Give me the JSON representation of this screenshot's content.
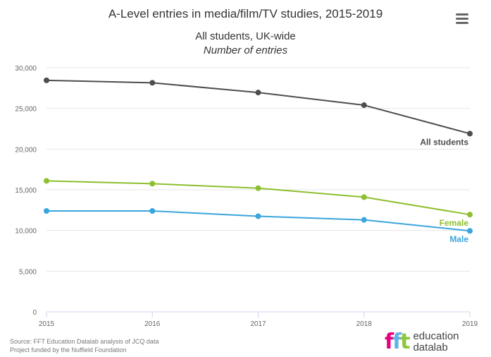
{
  "header": {
    "title": "A-Level entries in media/film/TV studies, 2015-2019",
    "subtitle": "All students, UK-wide",
    "subtitle_italic": "Number of entries"
  },
  "credits": {
    "line1": "Source: FFT Education Datalab analysis of JCQ data",
    "line2": "Project funded by the Nuffield Foundation"
  },
  "logo": {
    "mark": "fft",
    "line1": "education",
    "line2": "datalab"
  },
  "menu": {
    "icon": "hamburger-menu-icon"
  },
  "chart_data": {
    "type": "line",
    "title": "A-Level entries in media/film/TV studies, 2015-2019",
    "subtitle": "All students, UK-wide",
    "ylabel": "Number of entries",
    "x": [
      "2015",
      "2016",
      "2017",
      "2018",
      "2019"
    ],
    "ylim": [
      0,
      30000
    ],
    "yticks": [
      "0",
      "5,000",
      "10,000",
      "15,000",
      "20,000",
      "25,000",
      "30,000"
    ],
    "grid": true,
    "series": [
      {
        "name": "All students",
        "color": "#4d4d4d",
        "values": [
          28450,
          28150,
          26950,
          25400,
          21900
        ]
      },
      {
        "name": "Female",
        "color": "#8dbf2e",
        "values": [
          16100,
          15750,
          15200,
          14100,
          11950
        ]
      },
      {
        "name": "Male",
        "color": "#3aa5dc",
        "values": [
          12400,
          12400,
          11750,
          11300,
          9950
        ]
      }
    ]
  }
}
